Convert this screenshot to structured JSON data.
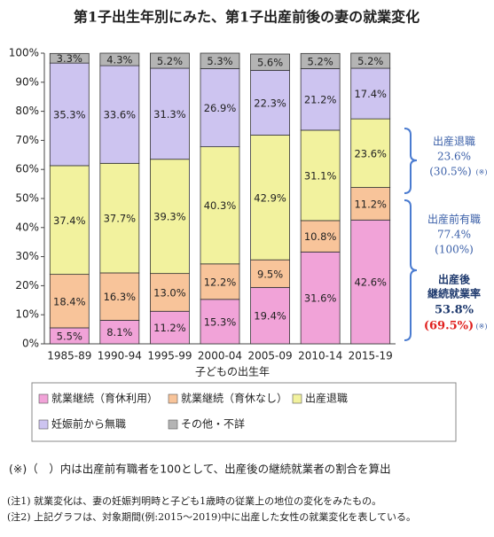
{
  "chart_data": {
    "type": "stacked-bar",
    "title": "第1子出生年別にみた、第1子出産前後の妻の就業変化",
    "x_label": "子どもの出生年",
    "categories": [
      "1985-89",
      "1990-94",
      "1995-99",
      "2000-04",
      "2005-09",
      "2010-14",
      "2015-19"
    ],
    "series": [
      {
        "name": "就業継続（育休利用）",
        "color": "#f1a3d8",
        "values": [
          5.5,
          8.1,
          11.2,
          15.3,
          19.4,
          31.6,
          42.6
        ],
        "value_labels": [
          "5.5%",
          "8.1%",
          "11.2%",
          "15.3%",
          "19.4%",
          "31.6%",
          "42.6%"
        ]
      },
      {
        "name": "就業継続（育休なし）",
        "color": "#f8c49a",
        "values": [
          18.4,
          16.3,
          13.0,
          12.2,
          9.5,
          10.8,
          11.2
        ],
        "value_labels": [
          "18.4%",
          "16.3%",
          "13.0%",
          "12.2%",
          "9.5%",
          "10.8%",
          "11.2%"
        ]
      },
      {
        "name": "出産退職",
        "color": "#f2f29e",
        "values": [
          37.4,
          37.7,
          39.3,
          40.3,
          42.9,
          31.1,
          23.6
        ],
        "value_labels": [
          "37.4%",
          "37.7%",
          "39.3%",
          "40.3%",
          "42.9%",
          "31.1%",
          "23.6%"
        ]
      },
      {
        "name": "妊娠前から無職",
        "color": "#cdc4f0",
        "values": [
          35.3,
          33.6,
          31.3,
          26.9,
          22.3,
          21.2,
          17.4
        ],
        "value_labels": [
          "35.3%",
          "33.6%",
          "31.3%",
          "26.9%",
          "22.3%",
          "21.2%",
          "17.4%"
        ]
      },
      {
        "name": "その他・不詳",
        "color": "#b4b4b4",
        "values": [
          3.3,
          4.3,
          5.2,
          5.3,
          5.6,
          5.2,
          5.2
        ],
        "value_labels": [
          "3.3%",
          "4.3%",
          "5.2%",
          "5.3%",
          "5.6%",
          "5.2%",
          "5.2%"
        ]
      }
    ],
    "ylim": [
      0,
      100
    ],
    "yticks": [
      {
        "value": 0,
        "label": "0%"
      },
      {
        "value": 10,
        "label": "10%"
      },
      {
        "value": 20,
        "label": "20%"
      },
      {
        "value": 30,
        "label": "30%"
      },
      {
        "value": 40,
        "label": "40%"
      },
      {
        "value": 50,
        "label": "50%"
      },
      {
        "value": 60,
        "label": "60%"
      },
      {
        "value": 70,
        "label": "70%"
      },
      {
        "value": 80,
        "label": "80%"
      },
      {
        "value": 90,
        "label": "90%"
      },
      {
        "value": 100,
        "label": "100%"
      }
    ],
    "annotations": [
      {
        "label": "出産退職",
        "value": "23.6%",
        "share": "(30.5%)",
        "note": "(※)"
      },
      {
        "label": "出産前有職",
        "value": "77.4%",
        "share": "(100%)"
      },
      {
        "label_lines": [
          "出産後",
          "継続就業率"
        ],
        "value": "53.8%",
        "share": "(69.5%)",
        "note": "(※)"
      }
    ],
    "notes": [
      "(※)（　）内は出産前有職者を100として、出産後の継続就業者の割合を算出",
      "(注1) 就業変化は、妻の妊娠判明時と子ども1歳時の従業上の地位の変化をみたもの。",
      "(注2) 上記グラフは、対象期間(例:2015～2019)中に出産した女性の就業変化を表している。"
    ]
  }
}
